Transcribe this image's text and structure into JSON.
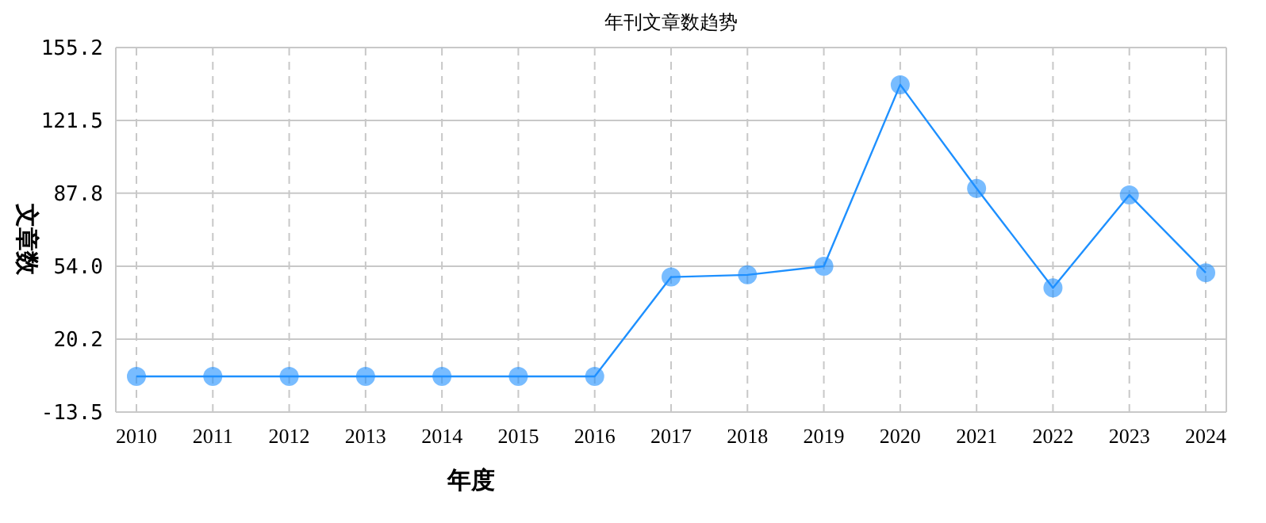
{
  "chart_data": {
    "type": "line",
    "title": "年刊文章数趋势",
    "xlabel": "年度",
    "ylabel": "文章数",
    "categories": [
      "2010",
      "2011",
      "2012",
      "2013",
      "2014",
      "2015",
      "2016",
      "2017",
      "2018",
      "2019",
      "2020",
      "2021",
      "2022",
      "2023",
      "2024"
    ],
    "series": [
      {
        "color": "#1e90ff",
        "values": [
          3,
          3,
          3,
          3,
          3,
          3,
          3,
          49,
          50,
          54,
          138,
          90,
          44,
          87,
          51
        ]
      }
    ],
    "ylim": [
      -13.5,
      155.2
    ],
    "yticks": [
      {
        "value": -13.5,
        "label": "-13.5"
      },
      {
        "value": 20.2,
        "label": "20.2"
      },
      {
        "value": 54,
        "label": "54.0"
      },
      {
        "value": 87.8,
        "label": "87.8"
      },
      {
        "value": 121.5,
        "label": "121.5"
      },
      {
        "value": 155.2,
        "label": "155.2"
      }
    ],
    "grid": true,
    "marker": "circle",
    "line_style": "solid"
  }
}
